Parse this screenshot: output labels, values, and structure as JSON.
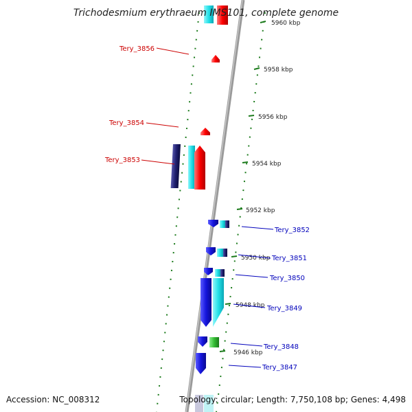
{
  "title": "Trichodesmium erythraeum IMS101, complete genome",
  "accession": "Accession: NC_008312",
  "topology": "Topology: circular; Length: 7,750,108 bp; Genes: 4,498",
  "colors": {
    "backbone": "#8a8a8a",
    "ticks": "#1a7a1a",
    "left_label": "#cc0000",
    "right_label": "#0000bb",
    "gene_red": "#ff0000",
    "gene_blue": "#1515dd",
    "gene_cyan": "#22e0e8",
    "gene_navy": "#202070",
    "gene_green": "#33bb33"
  },
  "scale": [
    {
      "text": "5960 kbp"
    },
    {
      "text": "5958 kbp"
    },
    {
      "text": "5956 kbp"
    },
    {
      "text": "5954 kbp"
    },
    {
      "text": "5952 kbp"
    },
    {
      "text": "5950 kbp"
    },
    {
      "text": "5948 kbp"
    },
    {
      "text": "5946 kbp"
    }
  ],
  "left_genes": [
    {
      "name": "Tery_3856"
    },
    {
      "name": "Tery_3854"
    },
    {
      "name": "Tery_3853"
    }
  ],
  "right_genes": [
    {
      "name": "Tery_3852"
    },
    {
      "name": "Tery_3851"
    },
    {
      "name": "Tery_3850"
    },
    {
      "name": "Tery_3849"
    },
    {
      "name": "Tery_3848"
    },
    {
      "name": "Tery_3847"
    }
  ]
}
